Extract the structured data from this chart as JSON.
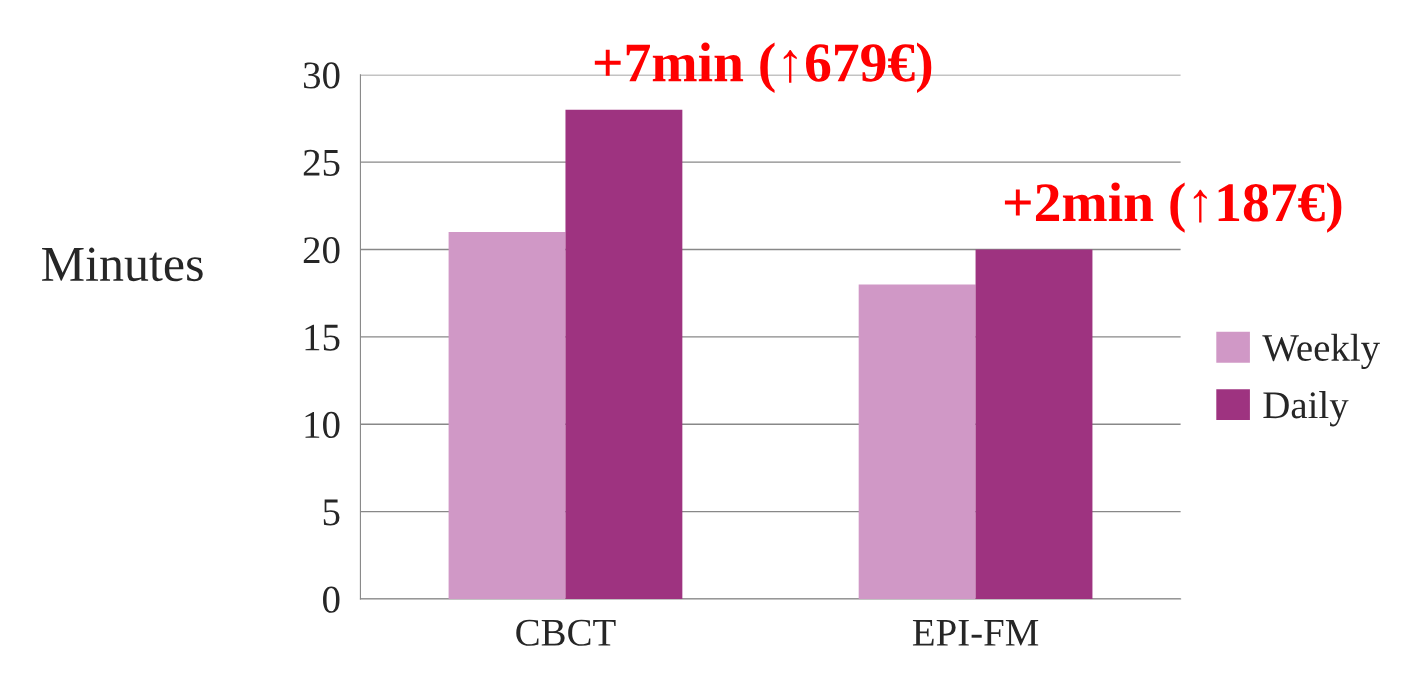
{
  "chart_data": {
    "type": "bar",
    "ylabel": "Minutes",
    "categories": [
      "CBCT",
      "EPI-FM"
    ],
    "series": [
      {
        "name": "Weekly",
        "color": "#d098c6",
        "values": [
          21,
          18
        ]
      },
      {
        "name": "Daily",
        "color": "#9e3380",
        "values": [
          28,
          20
        ]
      }
    ],
    "ylim": [
      0,
      30
    ],
    "yticks": [
      0,
      5,
      10,
      15,
      20,
      25,
      30
    ],
    "grid": "y",
    "legend": "right",
    "annotations": [
      {
        "text": "+7min (↑679€)",
        "x": "CBCT",
        "y": 28
      },
      {
        "text": "+2min (↑187€)",
        "x": "EPI-FM",
        "y": 20
      }
    ]
  }
}
